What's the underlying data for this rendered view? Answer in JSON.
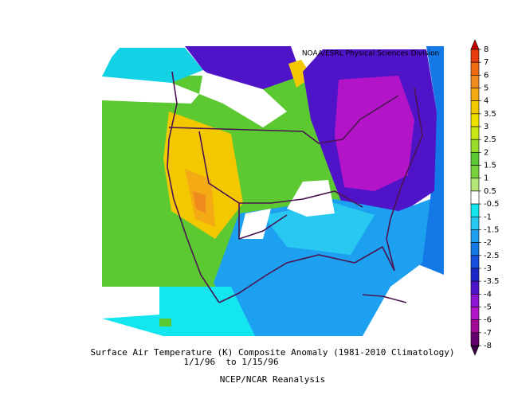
{
  "header": {
    "credit": "NOAA/ESRL Physical Sciences Division"
  },
  "footer": {
    "title": "Surface Air Temperature (K) Composite Anomaly (1981-2010 Climatology)",
    "dates": "1/1/96  to 1/15/96",
    "source": "NCEP/NCAR Reanalysis"
  },
  "colorbar": {
    "labels": [
      8,
      7,
      6,
      5,
      4,
      3.5,
      3,
      2.5,
      2,
      1.5,
      1,
      0.5,
      -0.5,
      -1,
      -1.5,
      -2,
      -2.5,
      -3,
      -3.5,
      -4,
      -5,
      -6,
      -7,
      -8
    ],
    "colors": [
      "#c80000",
      "#e83c10",
      "#f06a10",
      "#f08c1e",
      "#f4aa14",
      "#f4c800",
      "#f0e000",
      "#c8e614",
      "#96dc28",
      "#5ac832",
      "#78d23c",
      "#b4e678",
      "#ffffff",
      "#14e6f0",
      "#28c8f0",
      "#1ea0f0",
      "#1478e6",
      "#1450dc",
      "#1e28c8",
      "#5014c8",
      "#8c14d2",
      "#b414c8",
      "#a00a96",
      "#64006e",
      "#3c0046"
    ]
  }
}
